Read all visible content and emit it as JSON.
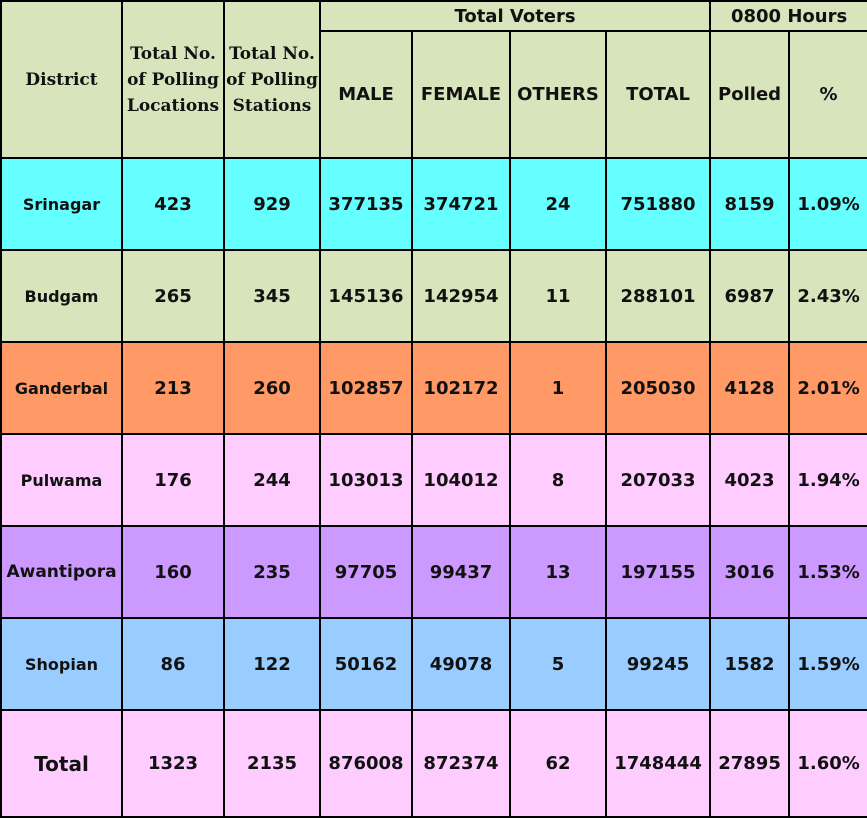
{
  "header": {
    "district": "District",
    "polling_locations": "Total No. of Polling Locations",
    "polling_stations": "Total No. of Polling Stations",
    "total_voters": "Total Voters",
    "hours": "0800 Hours",
    "male": "MALE",
    "female": "FEMALE",
    "others": "OTHERS",
    "total": "TOTAL",
    "polled": "Polled",
    "percent": "%"
  },
  "rows": [
    {
      "district": "Srinagar",
      "locations": "423",
      "stations": "929",
      "male": "377135",
      "female": "374721",
      "others": "24",
      "total": "751880",
      "polled": "8159",
      "percent": "1.09%",
      "color": "#66ffff"
    },
    {
      "district": "Budgam",
      "locations": "265",
      "stations": "345",
      "male": "145136",
      "female": "142954",
      "others": "11",
      "total": "288101",
      "polled": "6987",
      "percent": "2.43%",
      "color": "#d8e4bc"
    },
    {
      "district": "Ganderbal",
      "locations": "213",
      "stations": "260",
      "male": "102857",
      "female": "102172",
      "others": "1",
      "total": "205030",
      "polled": "4128",
      "percent": "2.01%",
      "color": "#ff9966"
    },
    {
      "district": "Pulwama",
      "locations": "176",
      "stations": "244",
      "male": "103013",
      "female": "104012",
      "others": "8",
      "total": "207033",
      "polled": "4023",
      "percent": "1.94%",
      "color": "#ffccff"
    },
    {
      "district": "Awantipora",
      "locations": "160",
      "stations": "235",
      "male": "97705",
      "female": "99437",
      "others": "13",
      "total": "197155",
      "polled": "3016",
      "percent": "1.53%",
      "color": "#cc99ff"
    },
    {
      "district": "Shopian",
      "locations": "86",
      "stations": "122",
      "male": "50162",
      "female": "49078",
      "others": "5",
      "total": "99245",
      "polled": "1582",
      "percent": "1.59%",
      "color": "#99ccff"
    }
  ],
  "totals": {
    "district": "Total",
    "locations": "1323",
    "stations": "2135",
    "male": "876008",
    "female": "872374",
    "others": "62",
    "total": "1748444",
    "polled": "27895",
    "percent": "1.60%",
    "color": "#ffccff"
  }
}
